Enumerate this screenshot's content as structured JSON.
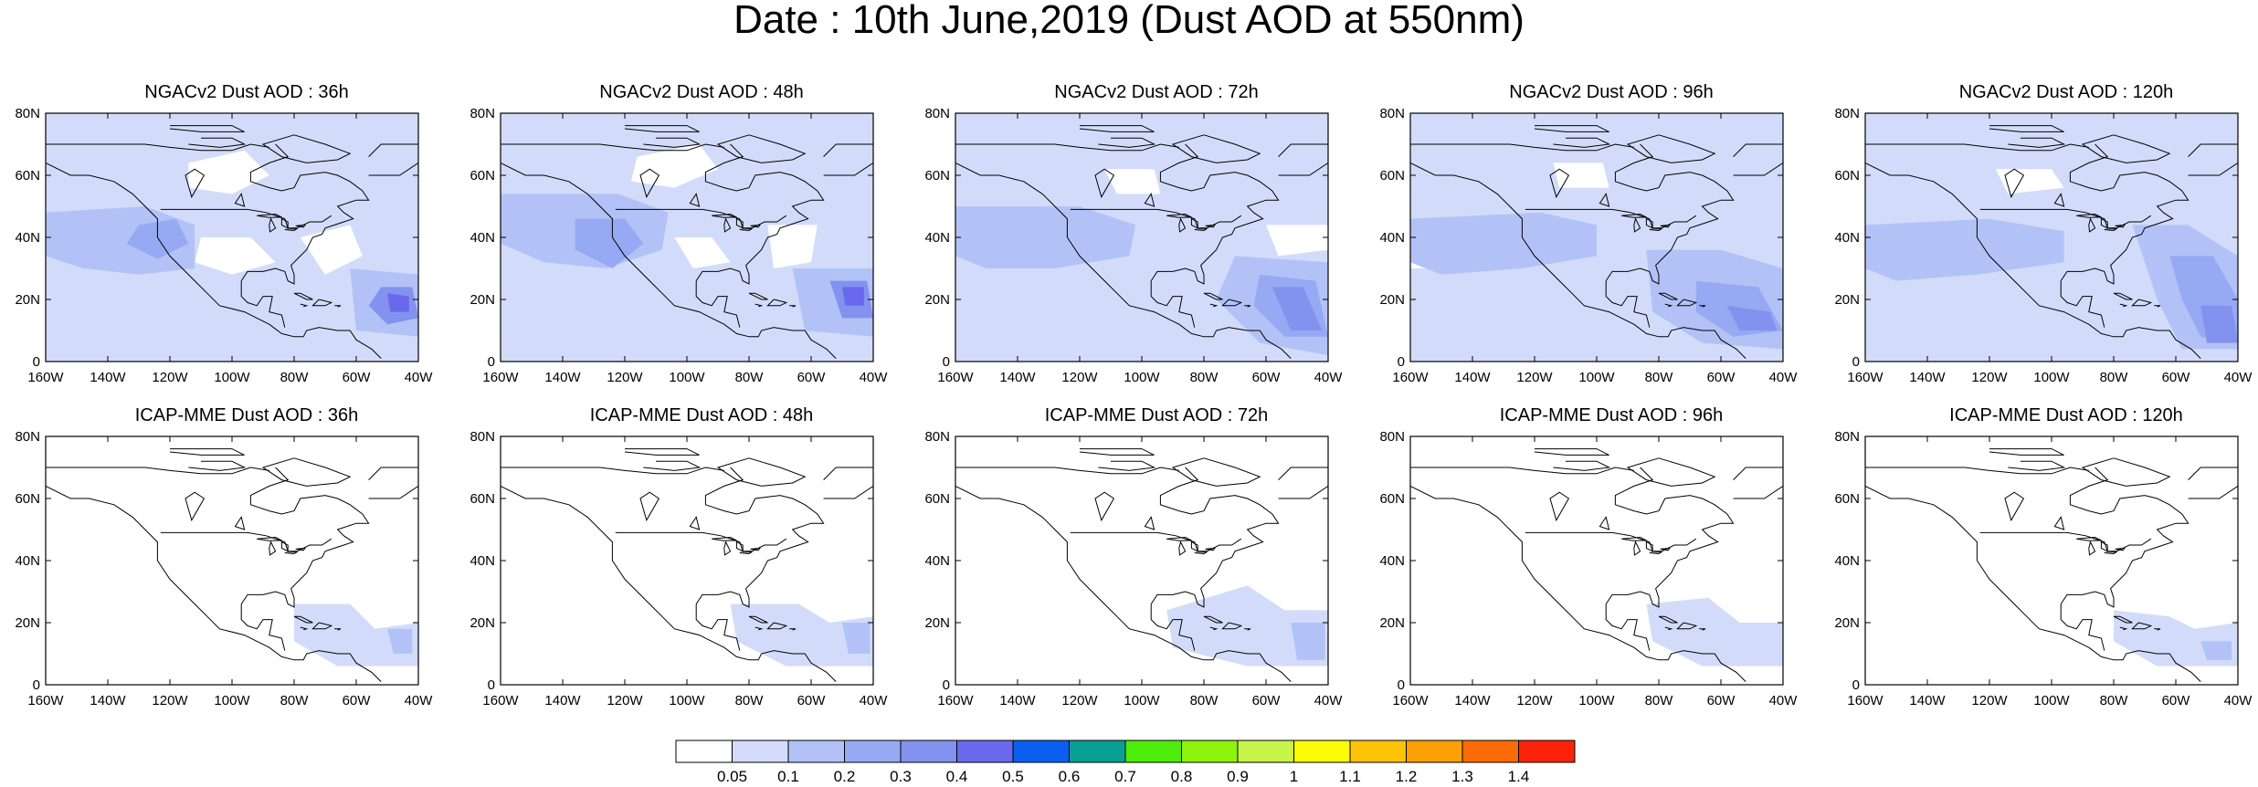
{
  "figure": {
    "title": "Date : 10th June,2019 (Dust AOD at 550nm)"
  },
  "axes": {
    "lat_ticks": [
      "80N",
      "60N",
      "40N",
      "20N",
      "0"
    ],
    "lon_ticks": [
      "160W",
      "140W",
      "120W",
      "100W",
      "80W",
      "60W",
      "40W"
    ],
    "lat_range": [
      0,
      80
    ],
    "lon_range": [
      -160,
      -40
    ]
  },
  "panels": [
    {
      "title": "NGACv2 Dust AOD : 36h",
      "model": "NGACv2",
      "forecast_hour": 36
    },
    {
      "title": "NGACv2 Dust AOD : 48h",
      "model": "NGACv2",
      "forecast_hour": 48
    },
    {
      "title": "NGACv2 Dust AOD : 72h",
      "model": "NGACv2",
      "forecast_hour": 72
    },
    {
      "title": "NGACv2 Dust AOD : 96h",
      "model": "NGACv2",
      "forecast_hour": 96
    },
    {
      "title": "NGACv2 Dust AOD : 120h",
      "model": "NGACv2",
      "forecast_hour": 120
    },
    {
      "title": "ICAP-MME Dust AOD : 36h",
      "model": "ICAP-MME",
      "forecast_hour": 36
    },
    {
      "title": "ICAP-MME Dust AOD : 48h",
      "model": "ICAP-MME",
      "forecast_hour": 48
    },
    {
      "title": "ICAP-MME Dust AOD : 72h",
      "model": "ICAP-MME",
      "forecast_hour": 72
    },
    {
      "title": "ICAP-MME Dust AOD : 96h",
      "model": "ICAP-MME",
      "forecast_hour": 96
    },
    {
      "title": "ICAP-MME Dust AOD : 120h",
      "model": "ICAP-MME",
      "forecast_hour": 120
    }
  ],
  "colorbar": {
    "labels": [
      "0.05",
      "0.1",
      "0.2",
      "0.3",
      "0.4",
      "0.5",
      "0.6",
      "0.7",
      "0.8",
      "0.9",
      "1",
      "1.1",
      "1.2",
      "1.3",
      "1.4"
    ],
    "colors": [
      "#ffffff",
      "#d2dcfa",
      "#b3c2f6",
      "#97a9f2",
      "#8392ee",
      "#6a69ee",
      "#0a5ff0",
      "#06a095",
      "#4ced0a",
      "#8ef20a",
      "#c6f547",
      "#fcfc05",
      "#fcc307",
      "#fca005",
      "#fc6b05",
      "#fc2309"
    ]
  }
}
